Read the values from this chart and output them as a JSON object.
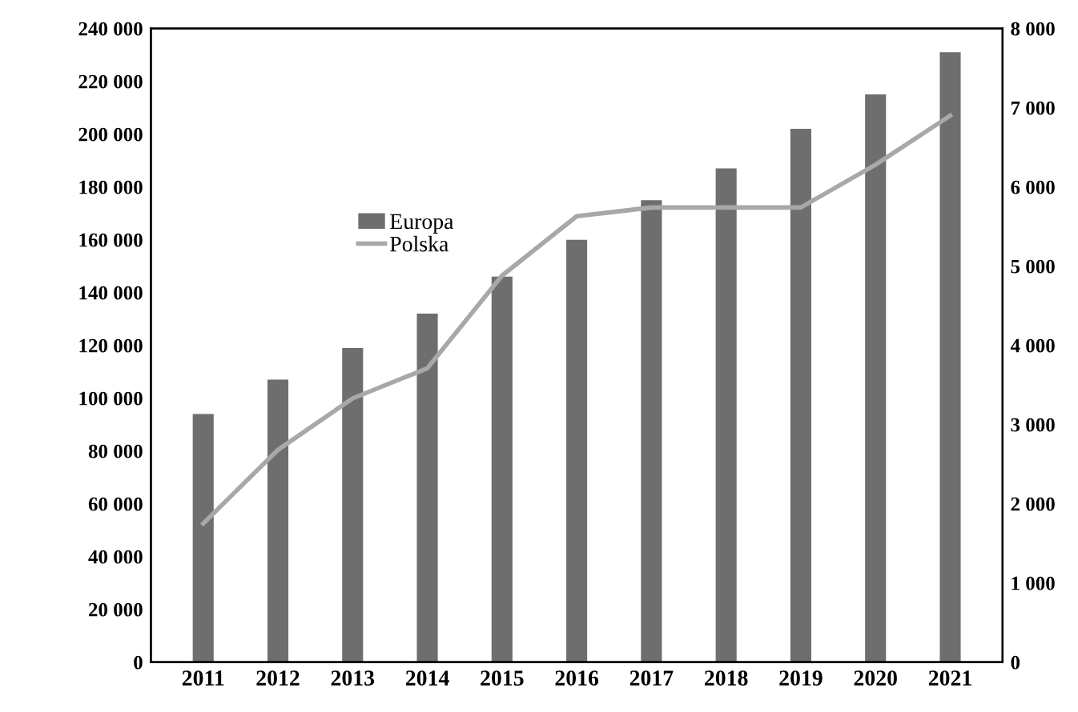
{
  "chart_data": {
    "type": "bar",
    "categories": [
      "2011",
      "2012",
      "2013",
      "2014",
      "2015",
      "2016",
      "2017",
      "2018",
      "2019",
      "2020",
      "2021"
    ],
    "series": [
      {
        "name": "Europa",
        "color": "#6e6e6e",
        "values": [
          94000,
          107000,
          119000,
          132000,
          146000,
          160000,
          175000,
          187000,
          202000,
          215000,
          231000
        ]
      },
      {
        "name": "Polska",
        "type": "line",
        "axis": "y2",
        "color": "#a8a8a8",
        "values": [
          1750,
          2680,
          3330,
          3710,
          4880,
          5630,
          5740,
          5740,
          5740,
          6280,
          6900
        ]
      }
    ],
    "ylim": [
      0,
      240000
    ],
    "yticks": [
      {
        "value": 0,
        "label": "0"
      },
      {
        "value": 20000,
        "label": "20 000"
      },
      {
        "value": 40000,
        "label": "40 000"
      },
      {
        "value": 60000,
        "label": "60 000"
      },
      {
        "value": 80000,
        "label": "80 000"
      },
      {
        "value": 100000,
        "label": "100 000"
      },
      {
        "value": 120000,
        "label": "120 000"
      },
      {
        "value": 140000,
        "label": "140 000"
      },
      {
        "value": 160000,
        "label": "160 000"
      },
      {
        "value": 180000,
        "label": "180 000"
      },
      {
        "value": 200000,
        "label": "200 000"
      },
      {
        "value": 220000,
        "label": "220 000"
      },
      {
        "value": 240000,
        "label": "240 000"
      }
    ],
    "y2lim": [
      0,
      8000
    ],
    "y2ticks": [
      {
        "value": 0,
        "label": "0"
      },
      {
        "value": 1000,
        "label": "1 000"
      },
      {
        "value": 2000,
        "label": "2 000"
      },
      {
        "value": 3000,
        "label": "3 000"
      },
      {
        "value": 4000,
        "label": "4 000"
      },
      {
        "value": 5000,
        "label": "5 000"
      },
      {
        "value": 6000,
        "label": "6 000"
      },
      {
        "value": 7000,
        "label": "7 000"
      },
      {
        "value": 8000,
        "label": "8 000"
      }
    ],
    "legend": "top left",
    "grid": false
  }
}
